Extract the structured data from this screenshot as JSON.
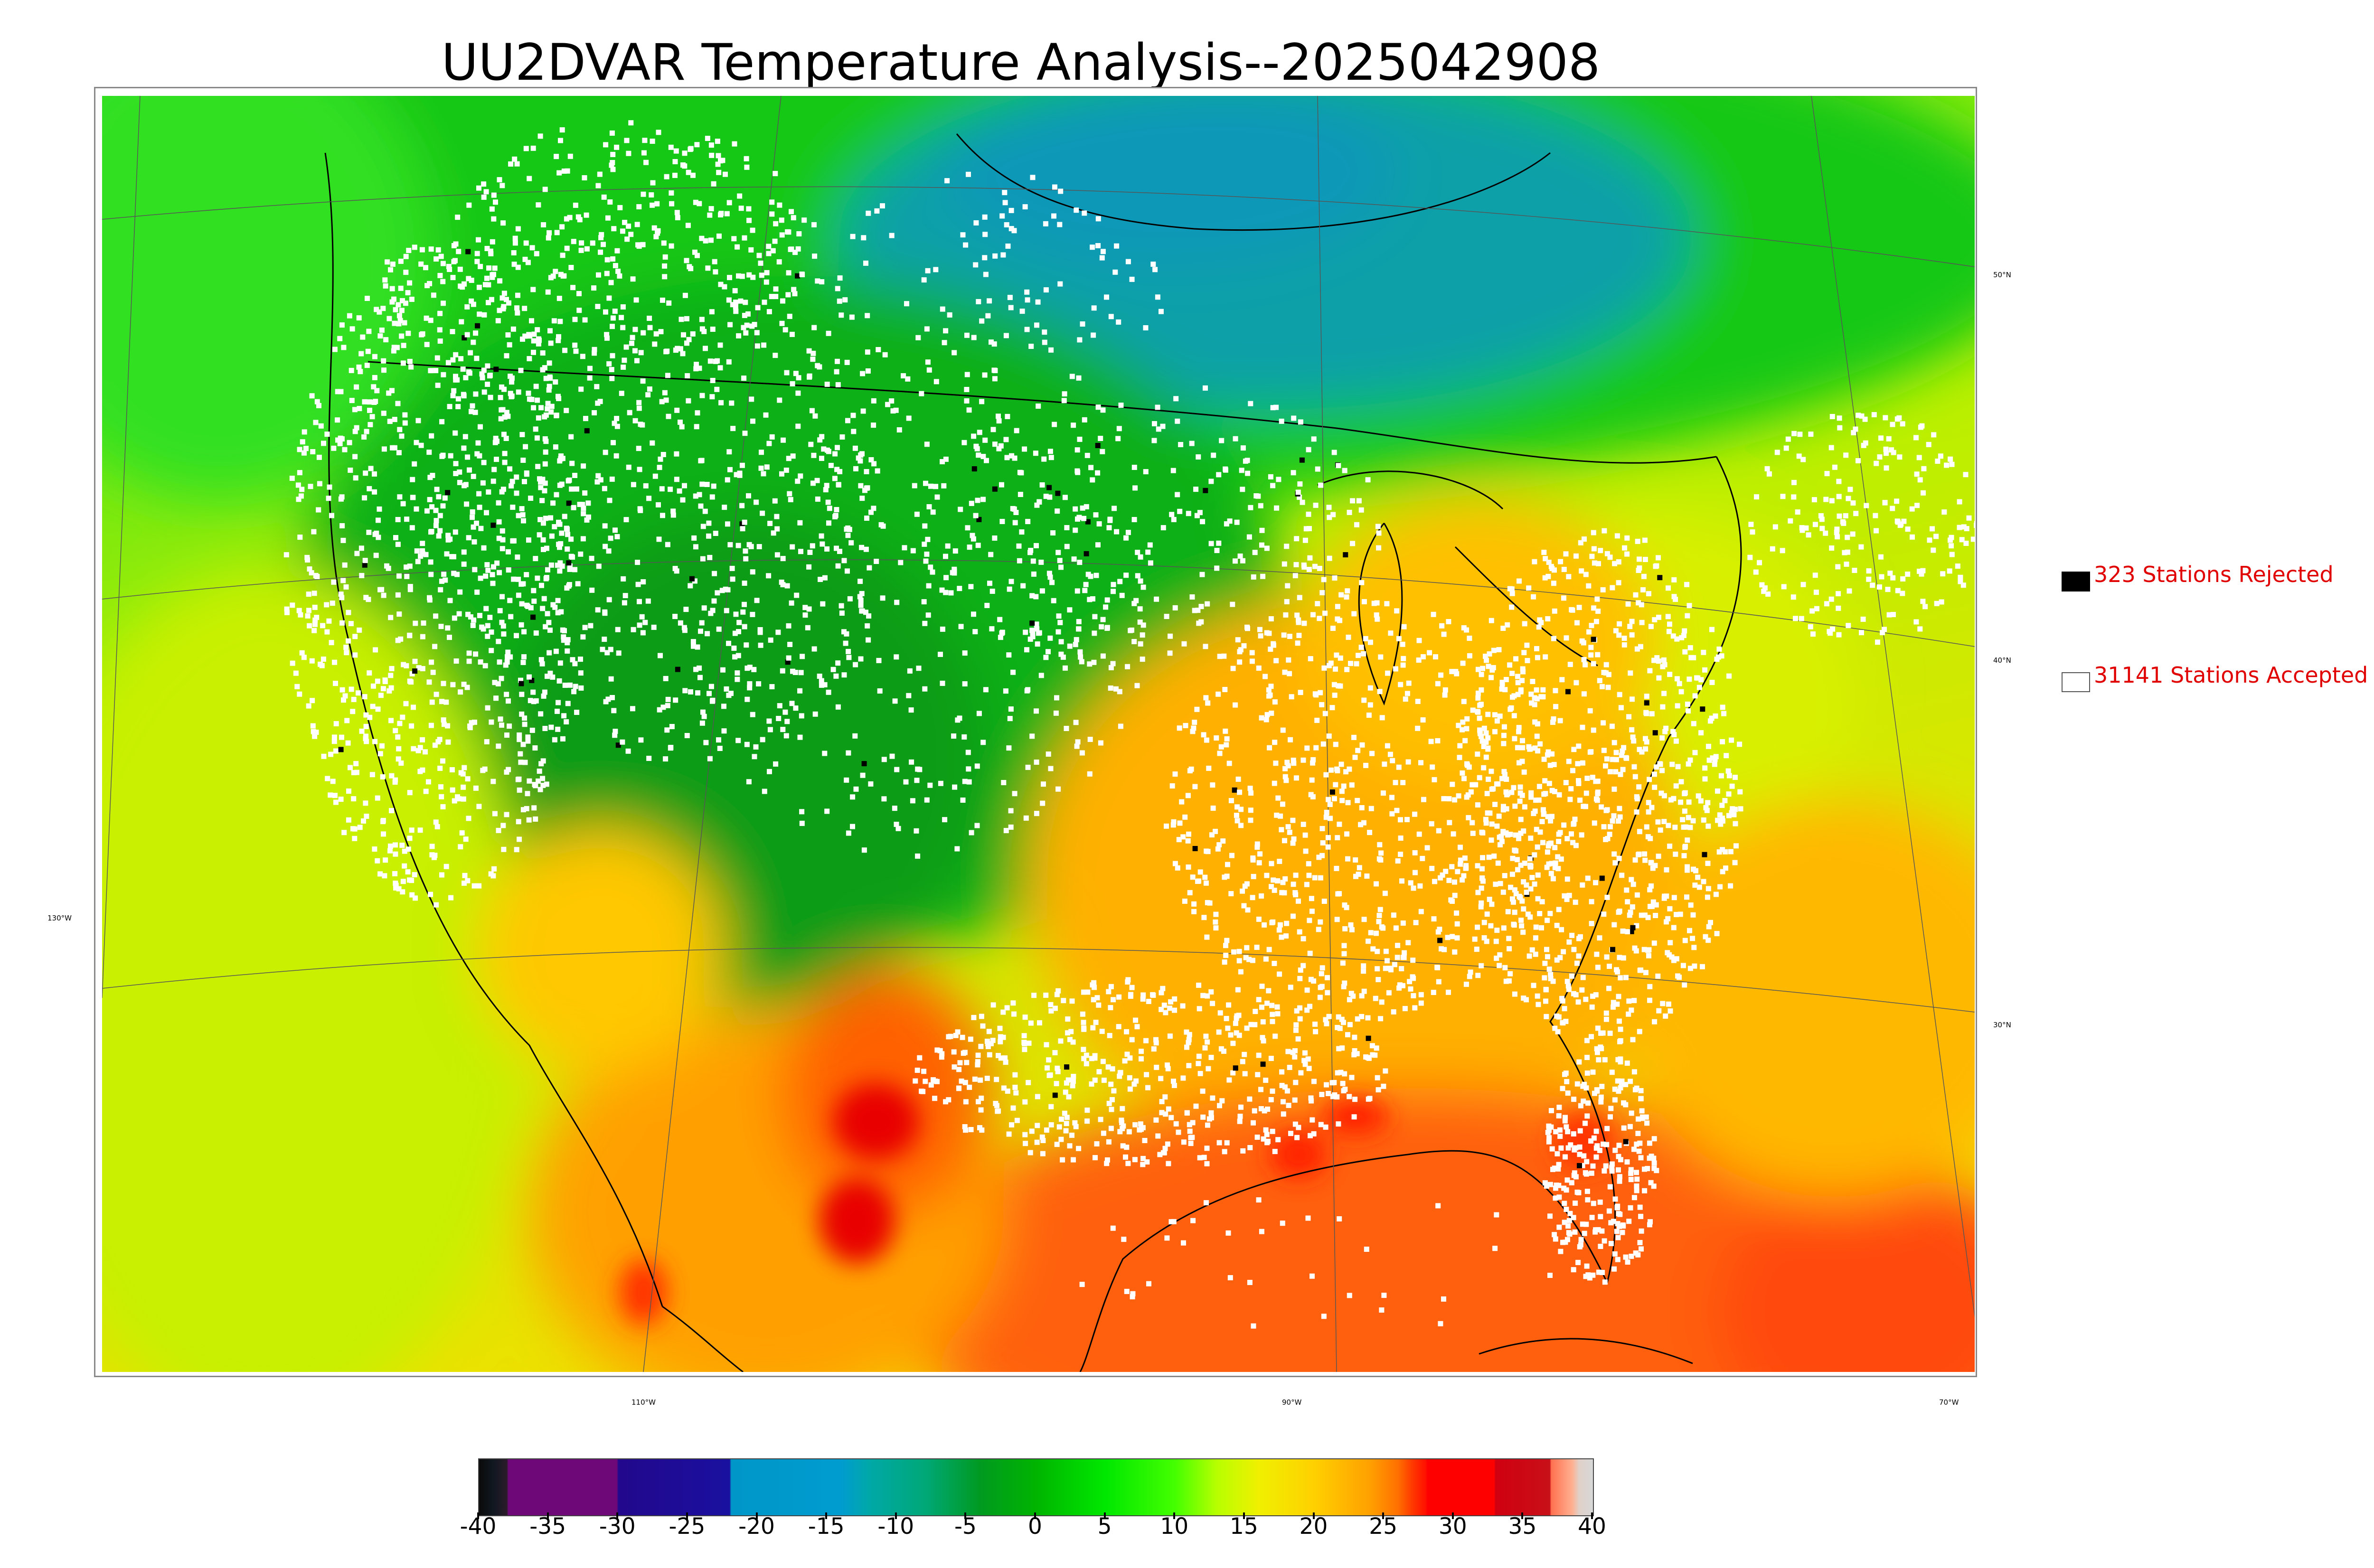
{
  "title": "UU2DVAR Temperature Analysis--2025042908",
  "legend": {
    "rejected": {
      "label": "323 Stations Rejected",
      "box_color": "#000000"
    },
    "accepted": {
      "label": "31141 Stations Accepted",
      "box_color": "#ffffff"
    },
    "text_color": "#e00000"
  },
  "graticule_labels": {
    "lat": [
      "50°N",
      "40°N",
      "30°N"
    ],
    "lon": [
      "130°W",
      "110°W",
      "90°W",
      "70°W"
    ]
  },
  "colorbar": {
    "min": -40,
    "max": 40,
    "tick_labels": [
      "-40",
      "-35",
      "-30",
      "-25",
      "-20",
      "-15",
      "-10",
      "-5",
      "0",
      "5",
      "10",
      "15",
      "20",
      "25",
      "30",
      "35",
      "40"
    ],
    "stops": [
      {
        "v": -40,
        "c": "#0a0a0a"
      },
      {
        "v": -39,
        "c": "#101820"
      },
      {
        "v": -38,
        "c": "#2a1a2a"
      },
      {
        "v": -37.9,
        "c": "#6e0878"
      },
      {
        "v": -30.1,
        "c": "#6e0878"
      },
      {
        "v": -30,
        "c": "#22088c"
      },
      {
        "v": -22,
        "c": "#1a10a0"
      },
      {
        "v": -21.9,
        "c": "#0096c8"
      },
      {
        "v": -14,
        "c": "#009cd0"
      },
      {
        "v": -12,
        "c": "#00a8a8"
      },
      {
        "v": -8,
        "c": "#00a878"
      },
      {
        "v": -4,
        "c": "#009a20"
      },
      {
        "v": 0,
        "c": "#00b400"
      },
      {
        "v": 5,
        "c": "#00e800"
      },
      {
        "v": 10,
        "c": "#44ff00"
      },
      {
        "v": 13,
        "c": "#b8ff00"
      },
      {
        "v": 16,
        "c": "#f0f000"
      },
      {
        "v": 20,
        "c": "#ffd000"
      },
      {
        "v": 24,
        "c": "#ffa000"
      },
      {
        "v": 26,
        "c": "#ff7000"
      },
      {
        "v": 27,
        "c": "#ff3a00"
      },
      {
        "v": 28,
        "c": "#ff1000"
      },
      {
        "v": 28.1,
        "c": "#ff0000"
      },
      {
        "v": 32.9,
        "c": "#ff0000"
      },
      {
        "v": 33,
        "c": "#d00010"
      },
      {
        "v": 36.9,
        "c": "#c81018"
      },
      {
        "v": 37,
        "c": "#ff7050"
      },
      {
        "v": 38.5,
        "c": "#ffb090"
      },
      {
        "v": 39,
        "c": "#e0d0c8"
      },
      {
        "v": 40,
        "c": "#d8d8d8"
      }
    ]
  },
  "colors": {
    "cool_green": "#10a818",
    "mid_green": "#22e022",
    "yellow_green": "#c8f000",
    "yellow": "#ffe000",
    "orange": "#ffa000",
    "red_orange": "#ff5010",
    "teal": "#10a0a0",
    "hot": "#e00000",
    "station": "#ffffff",
    "rejected_station": "#000000"
  }
}
